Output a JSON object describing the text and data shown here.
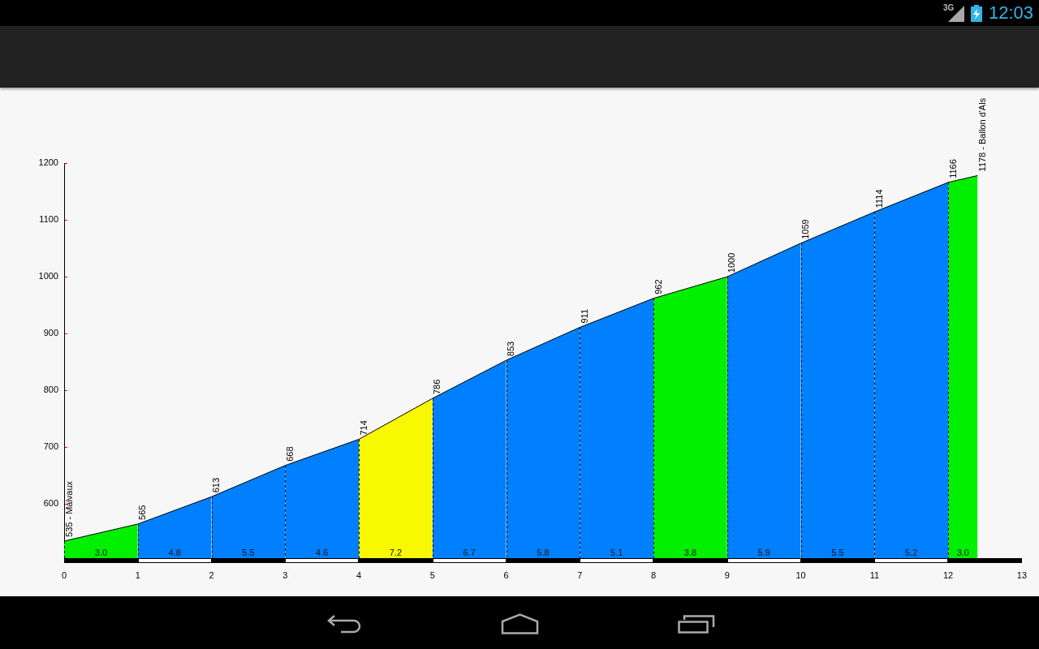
{
  "chart_data": {
    "type": "area",
    "series": [
      {
        "name": "3.0",
        "color": "#00f000",
        "x": [
          0,
          1
        ],
        "values": [
          535,
          565
        ],
        "value_labels": [
          "535 - Malvaux",
          null
        ]
      },
      {
        "name": "4.8",
        "color": "#0080ff",
        "x": [
          1,
          2
        ],
        "values": [
          565,
          613
        ],
        "value_labels": [
          "565",
          null
        ]
      },
      {
        "name": "5.5",
        "color": "#0080ff",
        "x": [
          2,
          3
        ],
        "values": [
          613,
          668
        ],
        "value_labels": [
          "613",
          null
        ]
      },
      {
        "name": "4.6",
        "color": "#0080ff",
        "x": [
          3,
          4
        ],
        "values": [
          668,
          714
        ],
        "value_labels": [
          "668",
          null
        ]
      },
      {
        "name": "7.2",
        "color": "#f8f800",
        "x": [
          4,
          5
        ],
        "values": [
          714,
          786
        ],
        "value_labels": [
          "714",
          null
        ]
      },
      {
        "name": "6.7",
        "color": "#0080ff",
        "x": [
          5,
          6
        ],
        "values": [
          786,
          853
        ],
        "value_labels": [
          "786",
          null
        ]
      },
      {
        "name": "5.8",
        "color": "#0080ff",
        "x": [
          6,
          7
        ],
        "values": [
          853,
          911
        ],
        "value_labels": [
          "853",
          null
        ]
      },
      {
        "name": "5.1",
        "color": "#0080ff",
        "x": [
          7,
          8
        ],
        "values": [
          911,
          962
        ],
        "value_labels": [
          "911",
          null
        ]
      },
      {
        "name": "3.8",
        "color": "#00f000",
        "x": [
          8,
          9
        ],
        "values": [
          962,
          1000
        ],
        "value_labels": [
          "962",
          null
        ]
      },
      {
        "name": "5.9",
        "color": "#0080ff",
        "x": [
          9,
          10
        ],
        "values": [
          1000,
          1059
        ],
        "value_labels": [
          "1000",
          null
        ]
      },
      {
        "name": "5.5",
        "color": "#0080ff",
        "x": [
          10,
          11
        ],
        "values": [
          1059,
          1114
        ],
        "value_labels": [
          "1059",
          null
        ]
      },
      {
        "name": "5.2",
        "color": "#0080ff",
        "x": [
          11,
          12
        ],
        "values": [
          1114,
          1166
        ],
        "value_labels": [
          "1114",
          null
        ]
      },
      {
        "name": "3.0",
        "color": "#00f000",
        "x": [
          12,
          12.4
        ],
        "values": [
          1166,
          1178
        ],
        "value_labels": [
          "1166",
          "1178 - Ballon d'Als"
        ]
      }
    ],
    "xlim": [
      0,
      13
    ],
    "xticks": [
      0,
      1,
      2,
      3,
      4,
      5,
      6,
      7,
      8,
      9,
      10,
      11,
      12,
      13
    ],
    "ylim": [
      505,
      1200
    ],
    "yticks": [
      600,
      700,
      800,
      900,
      1000,
      1100,
      1200
    ],
    "grid": "x",
    "line_style": "dashed",
    "marker": "none",
    "annotations": [
      "3G",
      "12:03"
    ]
  }
}
